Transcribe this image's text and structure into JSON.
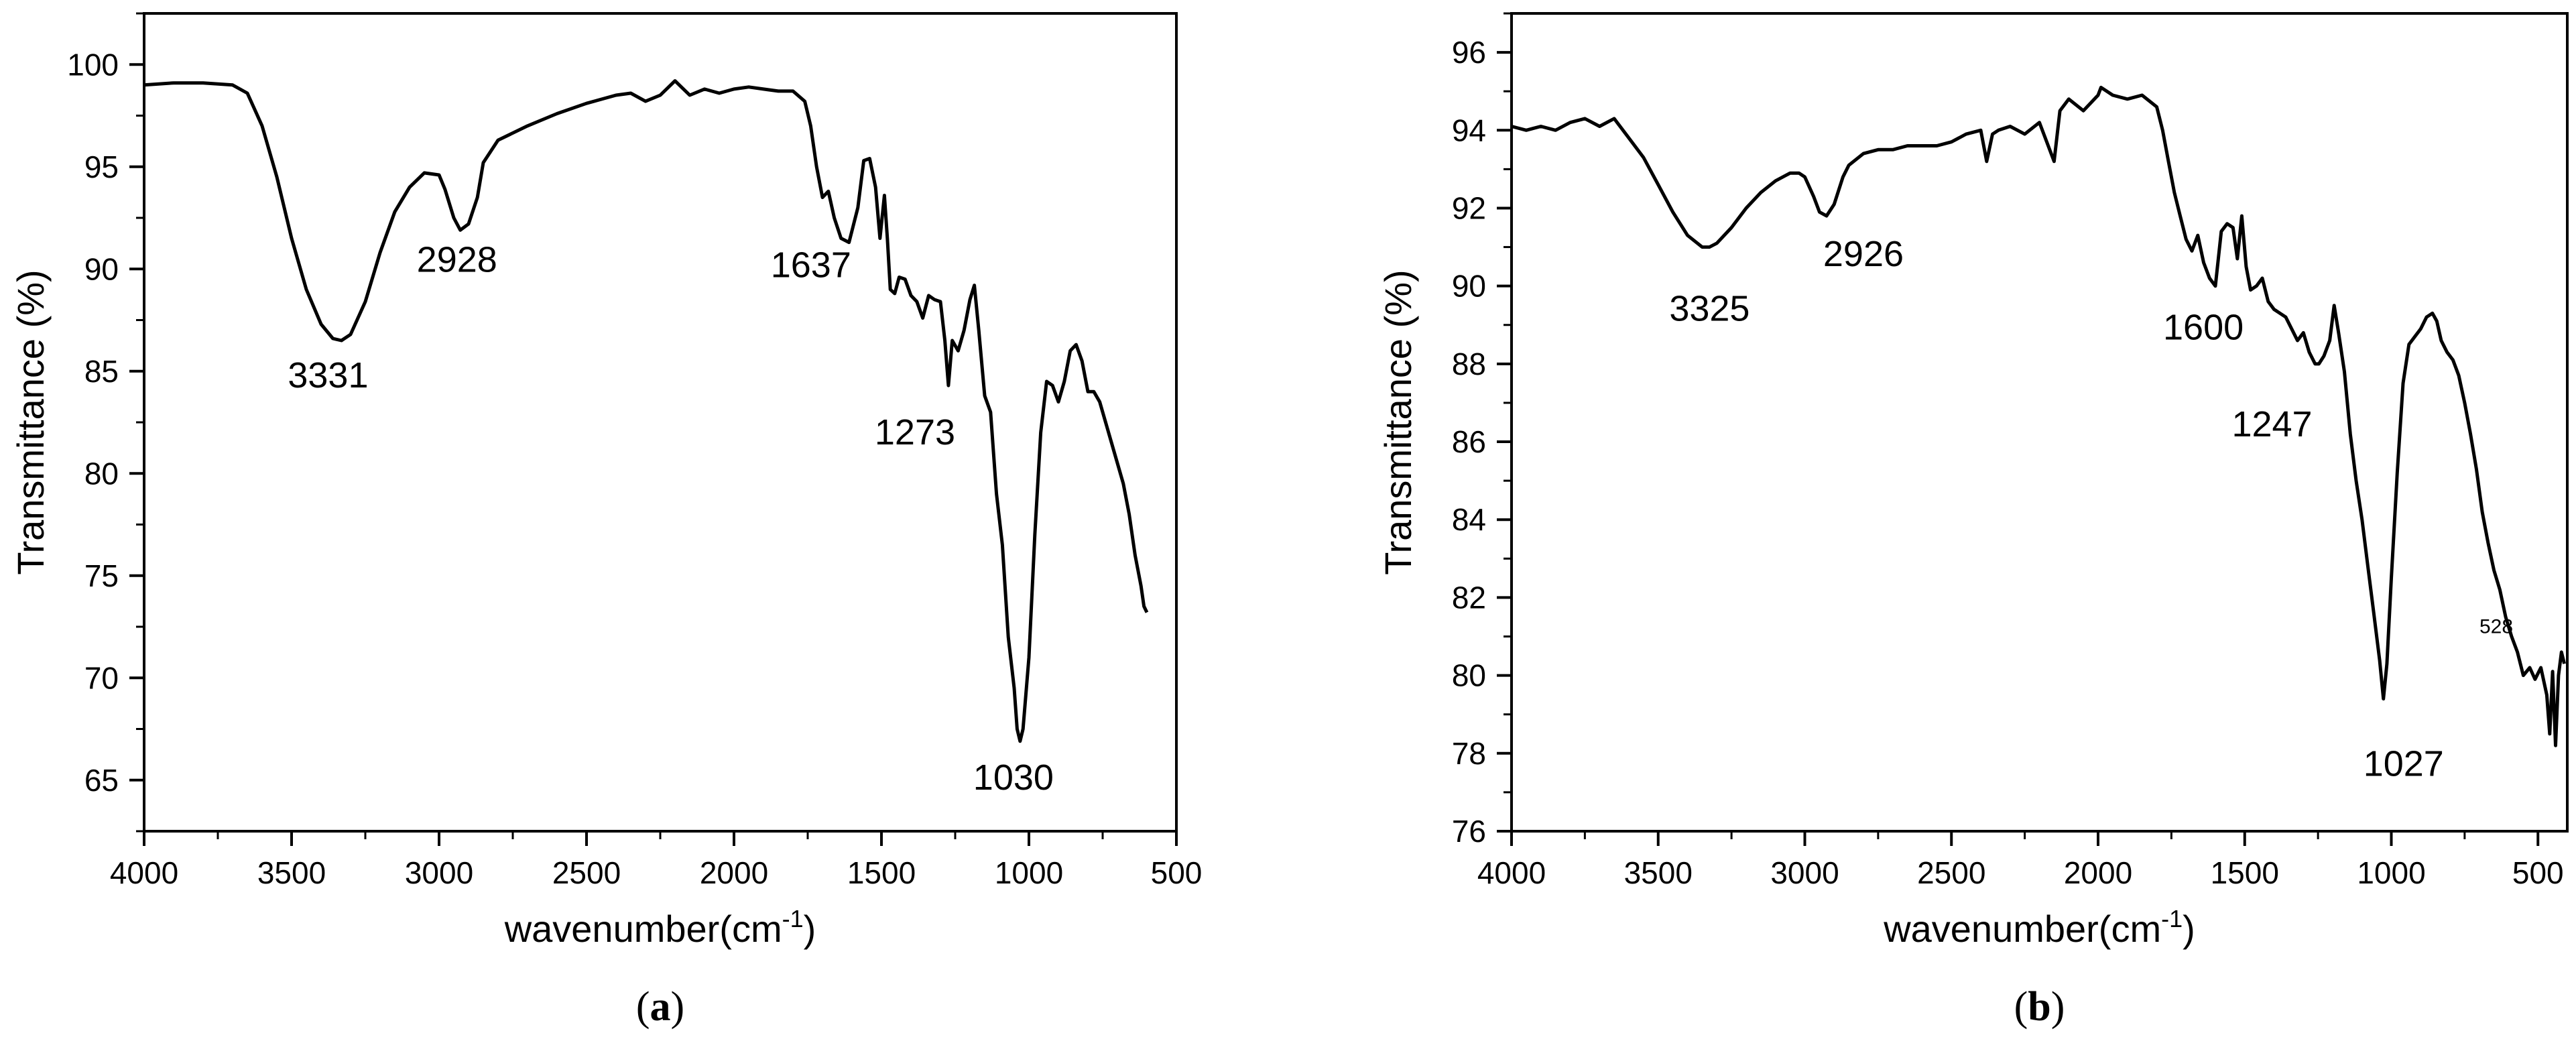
{
  "chart_data": [
    {
      "type": "line",
      "panel_label": "(a)",
      "panel_letter": "a",
      "xlabel_main": "wavenumber(cm",
      "xlabel_sup": "-1",
      "xlabel_end": ")",
      "ylabel": "Transmittance (%)",
      "xlim": [
        4000,
        500
      ],
      "ylim": [
        62.5,
        102.5
      ],
      "x_ticks": [
        "4000",
        "3500",
        "3000",
        "2500",
        "2000",
        "1500",
        "1000",
        "500"
      ],
      "y_ticks": [
        "65",
        "70",
        "75",
        "80",
        "85",
        "90",
        "95",
        "100"
      ],
      "line_color": "#000000",
      "x": [
        4000,
        3900,
        3800,
        3700,
        3650,
        3600,
        3550,
        3500,
        3450,
        3400,
        3360,
        3331,
        3300,
        3250,
        3200,
        3150,
        3100,
        3050,
        3000,
        2980,
        2950,
        2928,
        2900,
        2870,
        2850,
        2800,
        2700,
        2600,
        2500,
        2400,
        2350,
        2300,
        2250,
        2200,
        2150,
        2100,
        2050,
        2000,
        1950,
        1900,
        1850,
        1800,
        1760,
        1740,
        1720,
        1700,
        1680,
        1660,
        1637,
        1610,
        1580,
        1560,
        1540,
        1520,
        1505,
        1490,
        1480,
        1470,
        1455,
        1440,
        1420,
        1400,
        1380,
        1360,
        1340,
        1320,
        1300,
        1285,
        1273,
        1260,
        1240,
        1220,
        1200,
        1185,
        1170,
        1150,
        1130,
        1110,
        1090,
        1070,
        1050,
        1040,
        1030,
        1020,
        1000,
        980,
        960,
        940,
        920,
        900,
        880,
        860,
        840,
        820,
        800,
        780,
        760,
        740,
        720,
        700,
        680,
        660,
        640,
        620,
        610,
        600
      ],
      "y": [
        99.0,
        99.1,
        99.1,
        99.0,
        98.6,
        97.0,
        94.5,
        91.5,
        89.0,
        87.3,
        86.6,
        86.5,
        86.8,
        88.4,
        90.8,
        92.8,
        94.0,
        94.7,
        94.6,
        93.9,
        92.5,
        91.9,
        92.2,
        93.5,
        95.2,
        96.3,
        97.0,
        97.6,
        98.1,
        98.5,
        98.6,
        98.2,
        98.5,
        99.2,
        98.5,
        98.8,
        98.6,
        98.8,
        98.9,
        98.8,
        98.7,
        98.7,
        98.2,
        97.0,
        95.0,
        93.5,
        93.8,
        92.5,
        91.5,
        91.3,
        93.0,
        95.3,
        95.4,
        94.0,
        91.5,
        93.6,
        91.5,
        89.0,
        88.8,
        89.6,
        89.5,
        88.7,
        88.4,
        87.6,
        88.7,
        88.5,
        88.4,
        86.5,
        84.3,
        86.5,
        86.0,
        87.0,
        88.5,
        89.2,
        87.0,
        83.8,
        83.0,
        79.0,
        76.5,
        72.0,
        69.5,
        67.5,
        66.9,
        67.5,
        71.0,
        77.0,
        82.0,
        84.5,
        84.3,
        83.5,
        84.5,
        86.0,
        86.3,
        85.5,
        84.0,
        84.0,
        83.5,
        82.5,
        81.5,
        80.5,
        79.5,
        78.0,
        76.0,
        74.5,
        73.5,
        73.2
      ],
      "annotations": [
        {
          "text": "3331",
          "x": 3331,
          "y": 86.5
        },
        {
          "text": "2928",
          "x": 2928,
          "y": 91.9
        },
        {
          "text": "1637",
          "x": 1637,
          "y": 91.5
        },
        {
          "text": "1273",
          "x": 1273,
          "y": 84.3
        },
        {
          "text": "1030",
          "x": 1030,
          "y": 66.9
        }
      ]
    },
    {
      "type": "line",
      "panel_label": "(b)",
      "panel_letter": "b",
      "xlabel_main": "wavenumber(cm",
      "xlabel_sup": "-1",
      "xlabel_end": ")",
      "ylabel": "Transmittance (%)",
      "xlim": [
        4000,
        400
      ],
      "ylim": [
        76,
        97
      ],
      "x_ticks": [
        "4000",
        "3500",
        "3000",
        "2500",
        "2000",
        "1500",
        "1000",
        "500"
      ],
      "y_ticks": [
        "76",
        "78",
        "80",
        "82",
        "84",
        "86",
        "88",
        "90",
        "92",
        "94",
        "96"
      ],
      "line_color": "#000000",
      "x": [
        4000,
        3950,
        3900,
        3850,
        3800,
        3750,
        3700,
        3650,
        3600,
        3550,
        3500,
        3450,
        3400,
        3350,
        3325,
        3300,
        3250,
        3200,
        3150,
        3100,
        3050,
        3020,
        3000,
        2970,
        2950,
        2926,
        2900,
        2870,
        2850,
        2800,
        2750,
        2700,
        2650,
        2600,
        2550,
        2500,
        2450,
        2400,
        2380,
        2360,
        2340,
        2300,
        2250,
        2200,
        2150,
        2130,
        2100,
        2050,
        2000,
        1990,
        1950,
        1900,
        1850,
        1800,
        1780,
        1760,
        1740,
        1720,
        1700,
        1680,
        1660,
        1640,
        1620,
        1600,
        1580,
        1560,
        1540,
        1525,
        1510,
        1495,
        1480,
        1460,
        1440,
        1420,
        1400,
        1380,
        1360,
        1340,
        1320,
        1300,
        1280,
        1260,
        1247,
        1230,
        1210,
        1195,
        1180,
        1160,
        1140,
        1120,
        1100,
        1080,
        1060,
        1040,
        1027,
        1015,
        1000,
        980,
        960,
        940,
        920,
        900,
        880,
        860,
        845,
        830,
        810,
        790,
        770,
        750,
        730,
        710,
        690,
        670,
        650,
        630,
        610,
        590,
        570,
        550,
        528,
        510,
        490,
        470,
        460,
        450,
        440,
        430,
        420,
        410
      ],
      "y": [
        94.1,
        94.0,
        94.1,
        94.0,
        94.2,
        94.3,
        94.1,
        94.3,
        93.8,
        93.3,
        92.6,
        91.9,
        91.3,
        91.0,
        91.0,
        91.1,
        91.5,
        92.0,
        92.4,
        92.7,
        92.9,
        92.9,
        92.8,
        92.3,
        91.9,
        91.8,
        92.1,
        92.8,
        93.1,
        93.4,
        93.5,
        93.5,
        93.6,
        93.6,
        93.6,
        93.7,
        93.9,
        94.0,
        93.2,
        93.9,
        94.0,
        94.1,
        93.9,
        94.2,
        93.2,
        94.5,
        94.8,
        94.5,
        94.9,
        95.1,
        94.9,
        94.8,
        94.9,
        94.6,
        94.0,
        93.2,
        92.4,
        91.8,
        91.2,
        90.9,
        91.3,
        90.6,
        90.2,
        90.0,
        91.4,
        91.6,
        91.5,
        90.7,
        91.8,
        90.5,
        89.9,
        90.0,
        90.2,
        89.6,
        89.4,
        89.3,
        89.2,
        88.9,
        88.6,
        88.8,
        88.3,
        88.0,
        88.0,
        88.2,
        88.6,
        89.5,
        88.8,
        87.8,
        86.2,
        85.0,
        84.0,
        82.8,
        81.6,
        80.4,
        79.4,
        80.3,
        82.5,
        85.2,
        87.5,
        88.5,
        88.7,
        88.9,
        89.2,
        89.3,
        89.1,
        88.6,
        88.3,
        88.1,
        87.7,
        87.0,
        86.2,
        85.3,
        84.2,
        83.4,
        82.7,
        82.2,
        81.5,
        81.0,
        80.6,
        80.0,
        80.2,
        79.9,
        80.2,
        79.5,
        78.5,
        80.1,
        78.2,
        80.0,
        80.6,
        80.3
      ],
      "annotations": [
        {
          "text": "3325",
          "x": 3325,
          "y": 91.0
        },
        {
          "text": "2926",
          "x": 2926,
          "y": 91.8
        },
        {
          "text": "1600",
          "x": 1600,
          "y": 90.0
        },
        {
          "text": "1247",
          "x": 1247,
          "y": 88.0
        },
        {
          "text": "1027",
          "x": 1027,
          "y": 79.4
        },
        {
          "text": "528",
          "x": 528,
          "y": 81.0
        }
      ]
    }
  ]
}
